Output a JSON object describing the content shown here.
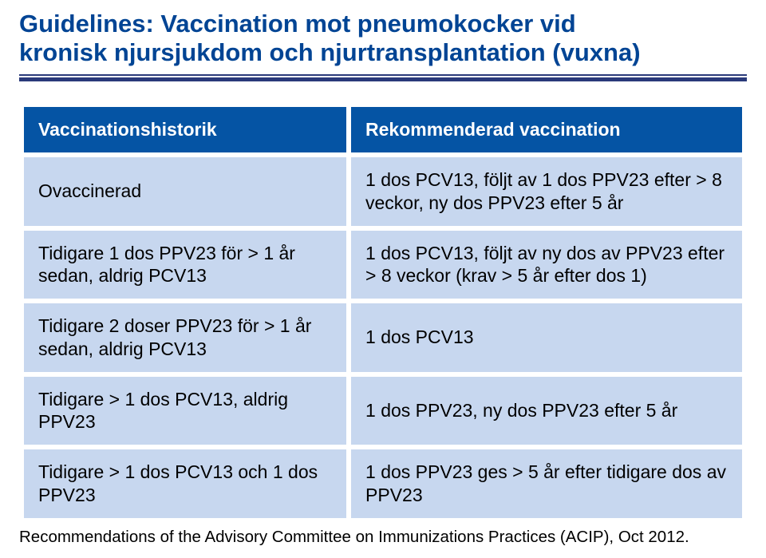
{
  "title_line1": "Guidelines: Vaccination mot pneumokocker vid",
  "title_line2": "kronisk njursjukdom och njurtransplantation (vuxna)",
  "colors": {
    "title": "#004494",
    "rule": "#2a3a7a",
    "header_bg": "#0554a4",
    "header_fg": "#ffffff",
    "cell_bg": "#c7d7ef",
    "cell_fg": "#000000",
    "page_bg": "#ffffff"
  },
  "typography": {
    "title_fontsize": 31,
    "title_weight": 900,
    "cell_fontsize": 23,
    "header_weight": 700,
    "footnote_fontsize": 20.5,
    "font_family": "Arial, Helvetica, sans-serif"
  },
  "table": {
    "type": "table",
    "columns": [
      "Vaccinationshistorik",
      "Rekommenderad vaccination"
    ],
    "rows": [
      [
        "Ovaccinerad",
        "1 dos PCV13, följt av 1 dos PPV23 efter > 8 veckor, ny dos PPV23 efter 5 år"
      ],
      [
        "Tidigare 1 dos PPV23 för > 1 år sedan, aldrig PCV13",
        "1 dos PCV13, följt av ny dos av PPV23 efter > 8 veckor (krav > 5 år efter dos 1)"
      ],
      [
        "Tidigare 2 doser PPV23 för > 1 år sedan, aldrig PCV13",
        "1 dos PCV13"
      ],
      [
        "Tidigare > 1 dos PCV13, aldrig PPV23",
        "1 dos PPV23, ny dos PPV23 efter 5 år"
      ],
      [
        "Tidigare > 1 dos PCV13 och 1 dos PPV23",
        "1 dos PPV23 ges > 5 år efter tidigare dos av PPV23"
      ]
    ]
  },
  "footnote": "Recommendations of the Advisory Committee on Immunizations Practices (ACIP), Oct 2012."
}
